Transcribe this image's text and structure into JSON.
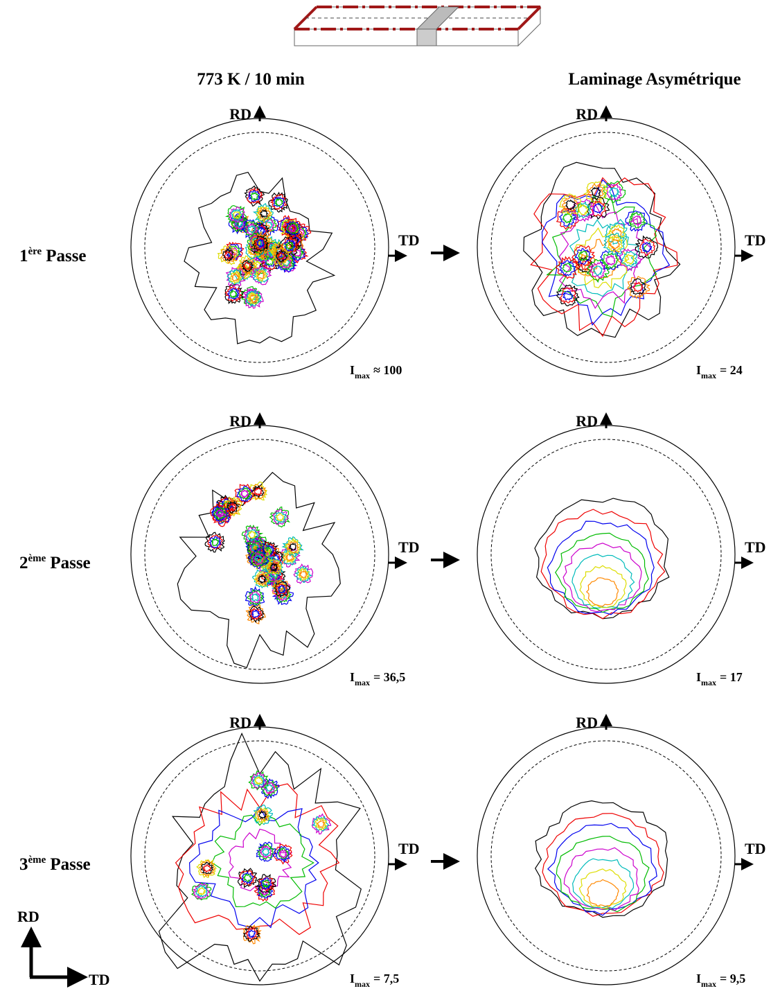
{
  "columns": [
    "773 K / 10 min",
    "Laminage Asymétrique"
  ],
  "rows": [
    {
      "num": "1",
      "sup": "ère",
      "word": "Passe",
      "panels": [
        {
          "rd": "RD",
          "td": "TD",
          "imax": "I",
          "sub": "max",
          "value": "≈ 100"
        },
        {
          "rd": "RD",
          "td": "TD",
          "imax": "I",
          "sub": "max",
          "value": "= 24"
        }
      ]
    },
    {
      "num": "2",
      "sup": "ème",
      "word": "Passe",
      "panels": [
        {
          "rd": "RD",
          "td": "TD",
          "imax": "I",
          "sub": "max",
          "value": "= 36,5"
        },
        {
          "rd": "RD",
          "td": "TD",
          "imax": "I",
          "sub": "max",
          "value": "= 17"
        }
      ]
    },
    {
      "num": "3",
      "sup": "ème",
      "word": "Passe",
      "panels": [
        {
          "rd": "RD",
          "td": "TD",
          "imax": "I",
          "sub": "max",
          "value": "= 7,5"
        },
        {
          "rd": "RD",
          "td": "TD",
          "imax": "I",
          "sub": "max",
          "value": "= 9,5"
        }
      ]
    }
  ],
  "axes": {
    "rd": "RD",
    "td": "TD"
  }
}
